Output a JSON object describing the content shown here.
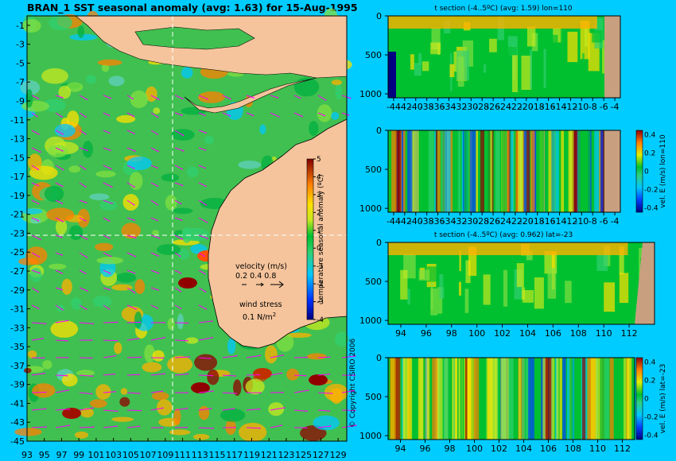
{
  "title": "BRAN_1  SST seasonal anomaly  (avg: 1.63) for 15-Aug-1995",
  "copyright": "© Copyright CSIRO 2006",
  "colors": {
    "background": "#00ccff",
    "land": "#f5c49c",
    "vector": "#ff00ff",
    "grid": "#ffffff"
  },
  "map": {
    "lat_ticks": [
      "-1",
      "-3",
      "-5",
      "-7",
      "-9",
      "-11",
      "-13",
      "-15",
      "-17",
      "-19",
      "-21",
      "-23",
      "-25",
      "-27",
      "-29",
      "-31",
      "-33",
      "-35",
      "-37",
      "-39",
      "-41",
      "-43",
      "-45"
    ],
    "lon_ticks": [
      "93",
      "95",
      "97",
      "99",
      "101",
      "103",
      "105",
      "107",
      "109",
      "111",
      "113",
      "115",
      "117",
      "119",
      "121",
      "123",
      "125",
      "127",
      "129"
    ],
    "colorbar_ticks": [
      "5",
      "4",
      "3",
      "2",
      "1",
      "0",
      "-1",
      "-2",
      "-3",
      "-4"
    ],
    "colorbar_label": "temperature seasonal anomaly (ºC)",
    "velocity_label": "velocity (m/s)",
    "velocity_scale": "0.2 0.4 0.8",
    "wind_label": "wind stress",
    "wind_scale": "0.1 N/m",
    "wind_scale_sup": "2"
  },
  "panels": [
    {
      "title": "t section (-4..5ºC) (avg: 1.59) lon=110",
      "y_ticks": [
        "0",
        "500",
        "1000"
      ],
      "x_ticks": [
        "-44",
        "-42",
        "-40",
        "-38",
        "-36",
        "-34",
        "-32",
        "-30",
        "-28",
        "-26",
        "-24",
        "-22",
        "-20",
        "-18",
        "-16",
        "-14",
        "-12",
        "-10",
        "-8",
        "-6",
        "-4"
      ],
      "cb_ticks": [],
      "cb_label": ""
    },
    {
      "title": "",
      "y_ticks": [
        "0",
        "500",
        "1000"
      ],
      "x_ticks": [
        "-44",
        "-42",
        "-40",
        "-38",
        "-36",
        "-34",
        "-32",
        "-30",
        "-28",
        "-26",
        "-24",
        "-22",
        "-20",
        "-18",
        "-16",
        "-14",
        "-12",
        "-10",
        "-8",
        "-6",
        "-4"
      ],
      "cb_ticks": [
        "0.4",
        "0.2",
        "0",
        "-0.2",
        "-0.4"
      ],
      "cb_label": "vel. E (m/s) lon=110"
    },
    {
      "title": "t section (-4..5ºC) (avg: 0.962) lat=-23",
      "y_ticks": [
        "0",
        "500",
        "1000"
      ],
      "x_ticks": [
        "94",
        "96",
        "98",
        "100",
        "102",
        "104",
        "106",
        "108",
        "110",
        "112"
      ],
      "cb_ticks": [],
      "cb_label": ""
    },
    {
      "title": "",
      "y_ticks": [
        "0",
        "500",
        "1000"
      ],
      "x_ticks": [
        "94",
        "96",
        "98",
        "100",
        "102",
        "104",
        "106",
        "108",
        "110",
        "112"
      ],
      "cb_ticks": [
        "0.4",
        "0.2",
        "0",
        "-0.2",
        "-0.4"
      ],
      "cb_label": "vel. E (m/s) lat=-23"
    }
  ],
  "chart_data": [
    {
      "type": "heatmap",
      "title": "BRAN_1  SST seasonal anomaly  (avg: 1.63) for 15-Aug-1995",
      "xlim": [
        93,
        130
      ],
      "ylim": [
        -45,
        0
      ],
      "colorbar_range": [
        -4,
        5
      ],
      "colorbar_label": "temperature seasonal anomaly (ºC)"
    },
    {
      "type": "heatmap",
      "title": "t section (-4..5ºC) (avg: 1.59) lon=110",
      "xlim": [
        -45,
        -3
      ],
      "ylim": [
        1050,
        0
      ]
    },
    {
      "type": "heatmap",
      "title": "",
      "xlim": [
        -45,
        -3
      ],
      "ylim": [
        1050,
        0
      ],
      "colorbar_range": [
        -0.4,
        0.4
      ],
      "colorbar_label": "vel. E (m/s) lon=110"
    },
    {
      "type": "heatmap",
      "title": "t section (-4..5ºC) (avg: 0.962) lat=-23",
      "xlim": [
        93,
        114
      ],
      "ylim": [
        1050,
        0
      ]
    },
    {
      "type": "heatmap",
      "title": "",
      "xlim": [
        93,
        114
      ],
      "ylim": [
        1050,
        0
      ],
      "colorbar_range": [
        -0.4,
        0.4
      ],
      "colorbar_label": "vel. E (m/s) lat=-23"
    }
  ]
}
